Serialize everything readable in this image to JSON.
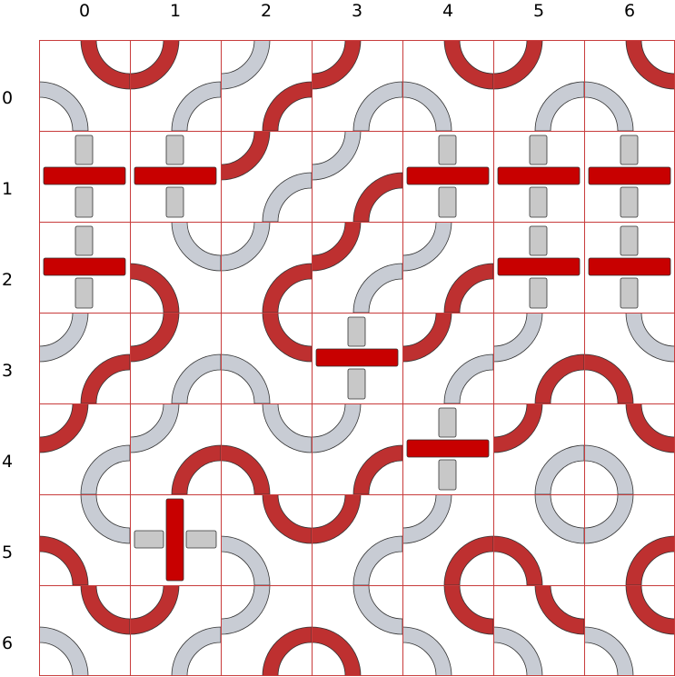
{
  "board": {
    "columns": [
      "0",
      "1",
      "2",
      "3",
      "4",
      "5",
      "6"
    ],
    "rows": [
      "0",
      "1",
      "2",
      "3",
      "4",
      "5",
      "6"
    ],
    "colors": {
      "active": "#be3030",
      "active_straight": "#c80000",
      "inactive": "#c8ccd4",
      "inactive_straight": "#c8c8c8",
      "grid": "#c83c3c",
      "outline": "#333333"
    },
    "tiles": [
      [
        {
          "kind": "arcs",
          "red": "TR",
          "grey": "BL"
        },
        {
          "kind": "arcs",
          "red": "TL",
          "grey": "BR"
        },
        {
          "kind": "arcs",
          "red": "BR",
          "grey": "TL"
        },
        {
          "kind": "arcs",
          "red": "TL",
          "grey": "BR"
        },
        {
          "kind": "arcs",
          "red": "TR",
          "grey": "BL"
        },
        {
          "kind": "arcs",
          "red": "TL",
          "grey": "BR"
        },
        {
          "kind": "arcs",
          "red": "TR",
          "grey": "BL"
        }
      ],
      [
        {
          "kind": "cross",
          "red": "h"
        },
        {
          "kind": "cross",
          "red": "h"
        },
        {
          "kind": "arcs",
          "red": "TL",
          "grey": "BR"
        },
        {
          "kind": "arcs",
          "red": "BR",
          "grey": "TL"
        },
        {
          "kind": "cross",
          "red": "h"
        },
        {
          "kind": "cross",
          "red": "h"
        },
        {
          "kind": "cross",
          "red": "h"
        }
      ],
      [
        {
          "kind": "cross",
          "red": "h"
        },
        {
          "kind": "arcs",
          "red": "BL",
          "grey": "TR"
        },
        {
          "kind": "arcs",
          "red": "BR",
          "grey": "TL"
        },
        {
          "kind": "arcs",
          "red": "TL",
          "grey": "BR"
        },
        {
          "kind": "arcs",
          "red": "BR",
          "grey": "TL"
        },
        {
          "kind": "cross",
          "red": "h"
        },
        {
          "kind": "cross",
          "red": "h"
        }
      ],
      [
        {
          "kind": "arcs",
          "red": "BR",
          "grey": "TL"
        },
        {
          "kind": "arcs",
          "red": "TL",
          "grey": "BR"
        },
        {
          "kind": "arcs",
          "red": "TR",
          "grey": "BL"
        },
        {
          "kind": "cross",
          "red": "h"
        },
        {
          "kind": "arcs",
          "red": "TL",
          "grey": "BR"
        },
        {
          "kind": "arcs",
          "red": "BR",
          "grey": "TL"
        },
        {
          "kind": "arcs",
          "red": "BL",
          "grey": "TR"
        }
      ],
      [
        {
          "kind": "arcs",
          "red": "TL",
          "grey": "BR"
        },
        {
          "kind": "arcs",
          "red": "BR",
          "grey": "TL"
        },
        {
          "kind": "arcs",
          "red": "BL",
          "grey": "TR"
        },
        {
          "kind": "arcs",
          "red": "BR",
          "grey": "TL"
        },
        {
          "kind": "cross",
          "red": "h"
        },
        {
          "kind": "arcs",
          "red": "TL",
          "grey": "BR"
        },
        {
          "kind": "arcs",
          "red": "TR",
          "grey": "BL"
        }
      ],
      [
        {
          "kind": "arcs",
          "red": "BL",
          "grey": "TR"
        },
        {
          "kind": "cross",
          "red": "v"
        },
        {
          "kind": "arcs",
          "red": "TR",
          "grey": "BL"
        },
        {
          "kind": "arcs",
          "red": "TL",
          "grey": "BR"
        },
        {
          "kind": "arcs",
          "red": "BR",
          "grey": "TL"
        },
        {
          "kind": "arcs",
          "red": "BL",
          "grey": "TR"
        },
        {
          "kind": "arcs",
          "red": "BR",
          "grey": "TL"
        }
      ],
      [
        {
          "kind": "arcs",
          "red": "TR",
          "grey": "BL"
        },
        {
          "kind": "arcs",
          "red": "TL",
          "grey": "BR"
        },
        {
          "kind": "arcs",
          "red": "BR",
          "grey": "TL"
        },
        {
          "kind": "arcs",
          "red": "BL",
          "grey": "TR"
        },
        {
          "kind": "arcs",
          "red": "TR",
          "grey": "BL"
        },
        {
          "kind": "arcs",
          "red": "TR",
          "grey": "BL"
        },
        {
          "kind": "arcs",
          "red": "TR",
          "grey": "BL"
        }
      ]
    ]
  }
}
